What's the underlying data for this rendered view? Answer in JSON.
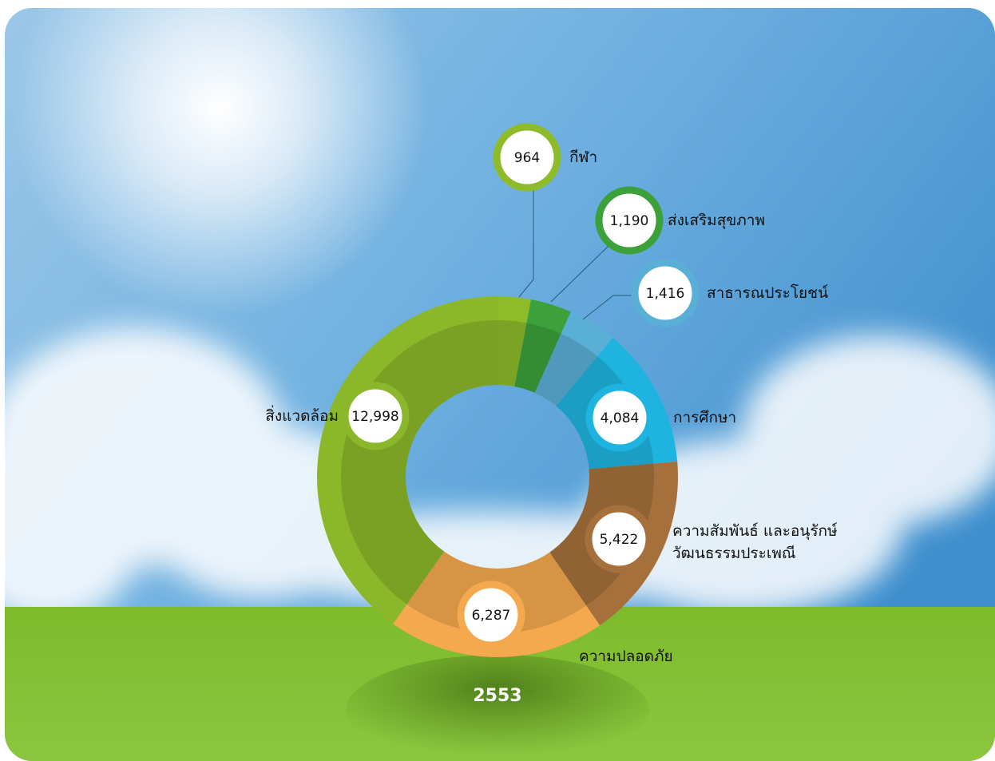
{
  "chart_data": {
    "type": "donut",
    "title": "2553",
    "categories": [
      "กีฬา",
      "ส่งเสริมสุขภาพ",
      "สาธารณประโยชน์",
      "การศึกษา",
      "ความสัมพันธ์ และอนุรักษ์วัฒนธรรมประเพณี",
      "ความปลอดภัย",
      "สิ่งแวดล้อม"
    ],
    "values": [
      964,
      1190,
      1416,
      4084,
      5422,
      6287,
      12998
    ],
    "value_labels": [
      "964",
      "1,190",
      "1,416",
      "4,084",
      "5,422",
      "6,287",
      "12,998"
    ],
    "colors": [
      "#8dbb2a",
      "#3ca13a",
      "#5aafd6",
      "#1eb4df",
      "#a6703c",
      "#f4a94e",
      "#8bb82a"
    ]
  }
}
